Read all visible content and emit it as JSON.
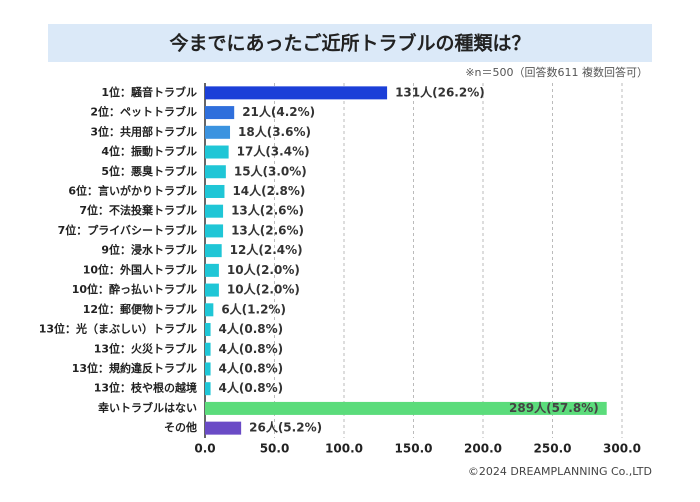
{
  "chart_data": {
    "type": "bar",
    "orientation": "horizontal",
    "title": "今までにあったご近所トラブルの種類は？",
    "note": "※n＝500（回答数611 複数回答可）",
    "credit": "©2024 DREAMPLANNING Co.,LTD",
    "categories": [
      "1位：騒音トラブル",
      "2位：ペットトラブル",
      "3位：共用部トラブル",
      "4位：振動トラブル",
      "5位：悪臭トラブル",
      "6位：言いがかりトラブル",
      "7位：不法投棄トラブル",
      "7位：プライバシートラブル",
      "9位：浸水トラブル",
      "10位：外国人トラブル",
      "10位：酔っ払いトラブル",
      "12位：郵便物トラブル",
      "13位：光（まぶしい）トラブル",
      "13位：火災トラブル",
      "13位：規約違反トラブル",
      "13位：枝や根の越境",
      "幸いトラブルはない",
      "その他"
    ],
    "values": [
      131,
      21,
      18,
      17,
      15,
      14,
      13,
      13,
      12,
      10,
      10,
      6,
      4,
      4,
      4,
      4,
      289,
      26
    ],
    "value_labels": [
      "131人(26.2%)",
      "21人(4.2%)",
      "18人(3.6%)",
      "17人(3.4%)",
      "15人(3.0%)",
      "14人(2.8%)",
      "13人(2.6%)",
      "13人(2.6%)",
      "12人(2.4%)",
      "10人(2.0%)",
      "10人(2.0%)",
      "6人(1.2%)",
      "4人(0.8%)",
      "4人(0.8%)",
      "4人(0.8%)",
      "4人(0.8%)",
      "289人(57.8%)",
      "26人(5.2%)"
    ],
    "colors": [
      "#1b3fd8",
      "#2f6fdc",
      "#3b93e0",
      "#1fc6d6",
      "#1fc6d6",
      "#1fc6d6",
      "#1fc6d6",
      "#1fc6d6",
      "#1fc6d6",
      "#1fc6d6",
      "#1fc6d6",
      "#1fc6d6",
      "#1fc6d6",
      "#1fc6d6",
      "#1fc6d6",
      "#1fc6d6",
      "#5bdc7b",
      "#6a4bc6"
    ],
    "xlim": [
      0,
      300
    ],
    "xticks": [
      {
        "value": 0,
        "label": "0.0"
      },
      {
        "value": 50,
        "label": "50.0"
      },
      {
        "value": 100,
        "label": "100.0"
      },
      {
        "value": 150,
        "label": "150.0"
      },
      {
        "value": 200,
        "label": "200.0"
      },
      {
        "value": 250,
        "label": "250.0"
      },
      {
        "value": 300,
        "label": "300.0"
      }
    ],
    "grid": true
  }
}
